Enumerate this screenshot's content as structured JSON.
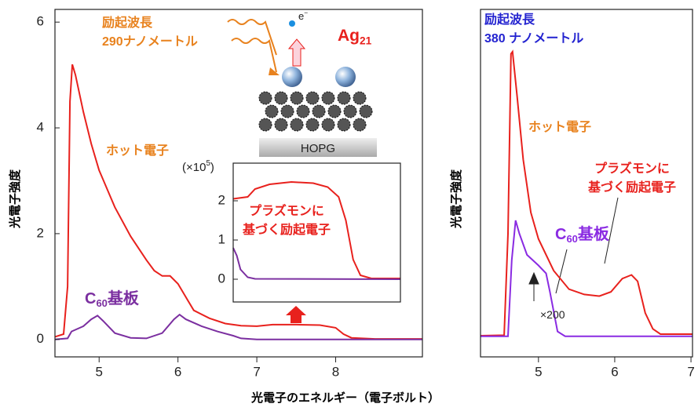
{
  "chart_data": [
    {
      "type": "line",
      "ylabel": "光電子強度",
      "xlabel": "光電子のエネルギー（電子ボルト）",
      "xlim": [
        4.44,
        9.1
      ],
      "ylim": [
        -0.33,
        6.24
      ],
      "xticks": [
        5,
        6,
        7,
        8
      ],
      "yticks": [
        0,
        2,
        4,
        6
      ],
      "series": [
        {
          "color": "#e8211d",
          "x": [
            4.44,
            4.55,
            4.6,
            4.63,
            4.66,
            4.7,
            4.8,
            4.9,
            5.0,
            5.2,
            5.4,
            5.6,
            5.7,
            5.8,
            5.9,
            6.0,
            6.1,
            6.2,
            6.4,
            6.6,
            6.8,
            7.0,
            7.2,
            7.5,
            7.8,
            8.0,
            8.1,
            8.2,
            8.5,
            9.1
          ],
          "values": [
            0.05,
            0.1,
            1,
            4.5,
            5.2,
            5.0,
            4.3,
            3.7,
            3.2,
            2.5,
            1.95,
            1.5,
            1.3,
            1.2,
            1.2,
            1.05,
            0.8,
            0.55,
            0.4,
            0.3,
            0.26,
            0.25,
            0.28,
            0.28,
            0.27,
            0.22,
            0.1,
            0.03,
            0.01,
            0.01
          ]
        },
        {
          "color": "#7b2fa0",
          "x": [
            4.44,
            4.6,
            4.65,
            4.8,
            4.9,
            4.98,
            5.05,
            5.2,
            5.4,
            5.6,
            5.8,
            5.95,
            6.02,
            6.1,
            6.3,
            6.5,
            6.7,
            6.8,
            7.0,
            9.1
          ],
          "values": [
            0,
            0.02,
            0.15,
            0.25,
            0.38,
            0.45,
            0.35,
            0.12,
            0.03,
            0.02,
            0.12,
            0.38,
            0.47,
            0.38,
            0.25,
            0.15,
            0.07,
            0.02,
            0,
            0
          ]
        }
      ],
      "annotations": [
        {
          "lines": [
            "励起波長",
            "290ナノメートル"
          ],
          "color": "#e8821e"
        },
        {
          "text": "Ag",
          "sub": "21",
          "color": "#e8211d"
        },
        {
          "text": "ホット電子",
          "color": "#e8821e"
        },
        {
          "text": "C",
          "sub": "60",
          "tail": "基板",
          "color": "#7b2fa0"
        },
        {
          "text": "e",
          "sup": "−",
          "color": "#222"
        },
        {
          "text": "HOPG",
          "color": "#222"
        }
      ]
    },
    {
      "type": "line",
      "xlim": [
        6.6,
        8.9
      ],
      "ylim": [
        -0.58,
        2.96
      ],
      "yticks": [
        0,
        1,
        2
      ],
      "series": [
        {
          "color": "#e8211d",
          "x": [
            6.6,
            6.8,
            6.9,
            7.1,
            7.4,
            7.7,
            7.9,
            8.05,
            8.15,
            8.25,
            8.35,
            8.5,
            8.9
          ],
          "values": [
            2.05,
            2.1,
            2.3,
            2.42,
            2.48,
            2.45,
            2.35,
            2.1,
            1.5,
            0.5,
            0.1,
            0.02,
            0.02
          ]
        },
        {
          "color": "#7b2fa0",
          "x": [
            6.6,
            6.65,
            6.7,
            6.8,
            6.9,
            8.9
          ],
          "values": [
            0.8,
            0.6,
            0.25,
            0.05,
            0.01,
            0
          ]
        }
      ],
      "annotations": [
        {
          "text": "(×10",
          "sup": "5",
          "tail": ")",
          "color": "#222"
        },
        {
          "lines": [
            "プラズモンに",
            "基づく励起電子"
          ],
          "color": "#e8211d"
        }
      ]
    },
    {
      "type": "line",
      "ylabel": "光電子強度",
      "xlim": [
        4.24,
        7.02
      ],
      "ylim": [
        -0.33,
        6.24
      ],
      "xticks": [
        5,
        6,
        7
      ],
      "series": [
        {
          "color": "#e8211d",
          "x": [
            4.24,
            4.55,
            4.6,
            4.64,
            4.66,
            4.72,
            4.8,
            4.9,
            5.0,
            5.2,
            5.4,
            5.6,
            5.8,
            5.95,
            6.1,
            6.22,
            6.3,
            6.4,
            6.5,
            6.6,
            7.02
          ],
          "values": [
            0.07,
            0.08,
            2,
            5.4,
            5.44,
            4.6,
            3.4,
            2.4,
            1.9,
            1.3,
            0.95,
            0.85,
            0.82,
            0.9,
            1.15,
            1.22,
            1.1,
            0.5,
            0.2,
            0.1,
            0.1
          ]
        },
        {
          "color": "#8a2be2",
          "x": [
            4.24,
            4.6,
            4.65,
            4.7,
            4.75,
            4.85,
            5.0,
            5.1,
            5.15,
            5.25,
            5.35,
            7.02
          ],
          "values": [
            0.06,
            0.06,
            1.5,
            2.25,
            2.0,
            1.6,
            1.4,
            1.25,
            0.9,
            0.15,
            0.06,
            0.06
          ]
        }
      ],
      "annotations": [
        {
          "lines": [
            "励起波長",
            "380 ナノメートル"
          ],
          "color": "#2323d0"
        },
        {
          "text": "ホット電子",
          "color": "#e8821e"
        },
        {
          "lines": [
            "プラズモンに",
            "基づく励起電子"
          ],
          "color": "#e8211d"
        },
        {
          "text": "C",
          "sub": "60",
          "tail": "基板",
          "color": "#8a2be2"
        },
        {
          "text": "×200",
          "color": "#222"
        }
      ]
    }
  ]
}
